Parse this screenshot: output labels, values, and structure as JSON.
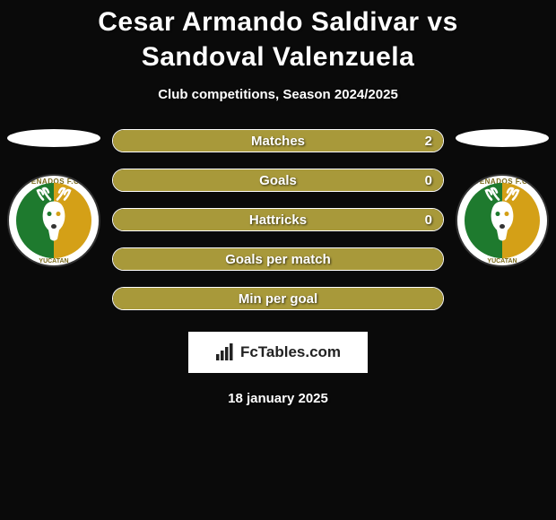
{
  "title": "Cesar Armando Saldivar vs Sandoval Valenzuela",
  "subtitle": "Club competitions, Season 2024/2025",
  "date": "18 january 2025",
  "footer": {
    "brand": "FcTables.com"
  },
  "colors": {
    "bar_fill": "#a8993a",
    "bar_border": "#ffffff",
    "ellipse_left": "#ffffff",
    "ellipse_right": "#ffffff",
    "club_green": "#1e7a2e",
    "club_gold": "#d4a017",
    "background": "#0a0a0a"
  },
  "bars": [
    {
      "label": "Matches",
      "value_right": "2",
      "fill_left_pct": 100,
      "fill_right_pct": 0,
      "fill_color": "#a8993a"
    },
    {
      "label": "Goals",
      "value_right": "0",
      "fill_left_pct": 100,
      "fill_right_pct": 0,
      "fill_color": "#a8993a"
    },
    {
      "label": "Hattricks",
      "value_right": "0",
      "fill_left_pct": 100,
      "fill_right_pct": 0,
      "fill_color": "#a8993a"
    },
    {
      "label": "Goals per match",
      "value_right": "",
      "fill_left_pct": 100,
      "fill_right_pct": 0,
      "fill_color": "#a8993a"
    },
    {
      "label": "Min per goal",
      "value_right": "",
      "fill_left_pct": 100,
      "fill_right_pct": 0,
      "fill_color": "#a8993a"
    }
  ],
  "club": {
    "top_text": "VENADOS F.C.",
    "bottom_text": "YUCATAN"
  }
}
